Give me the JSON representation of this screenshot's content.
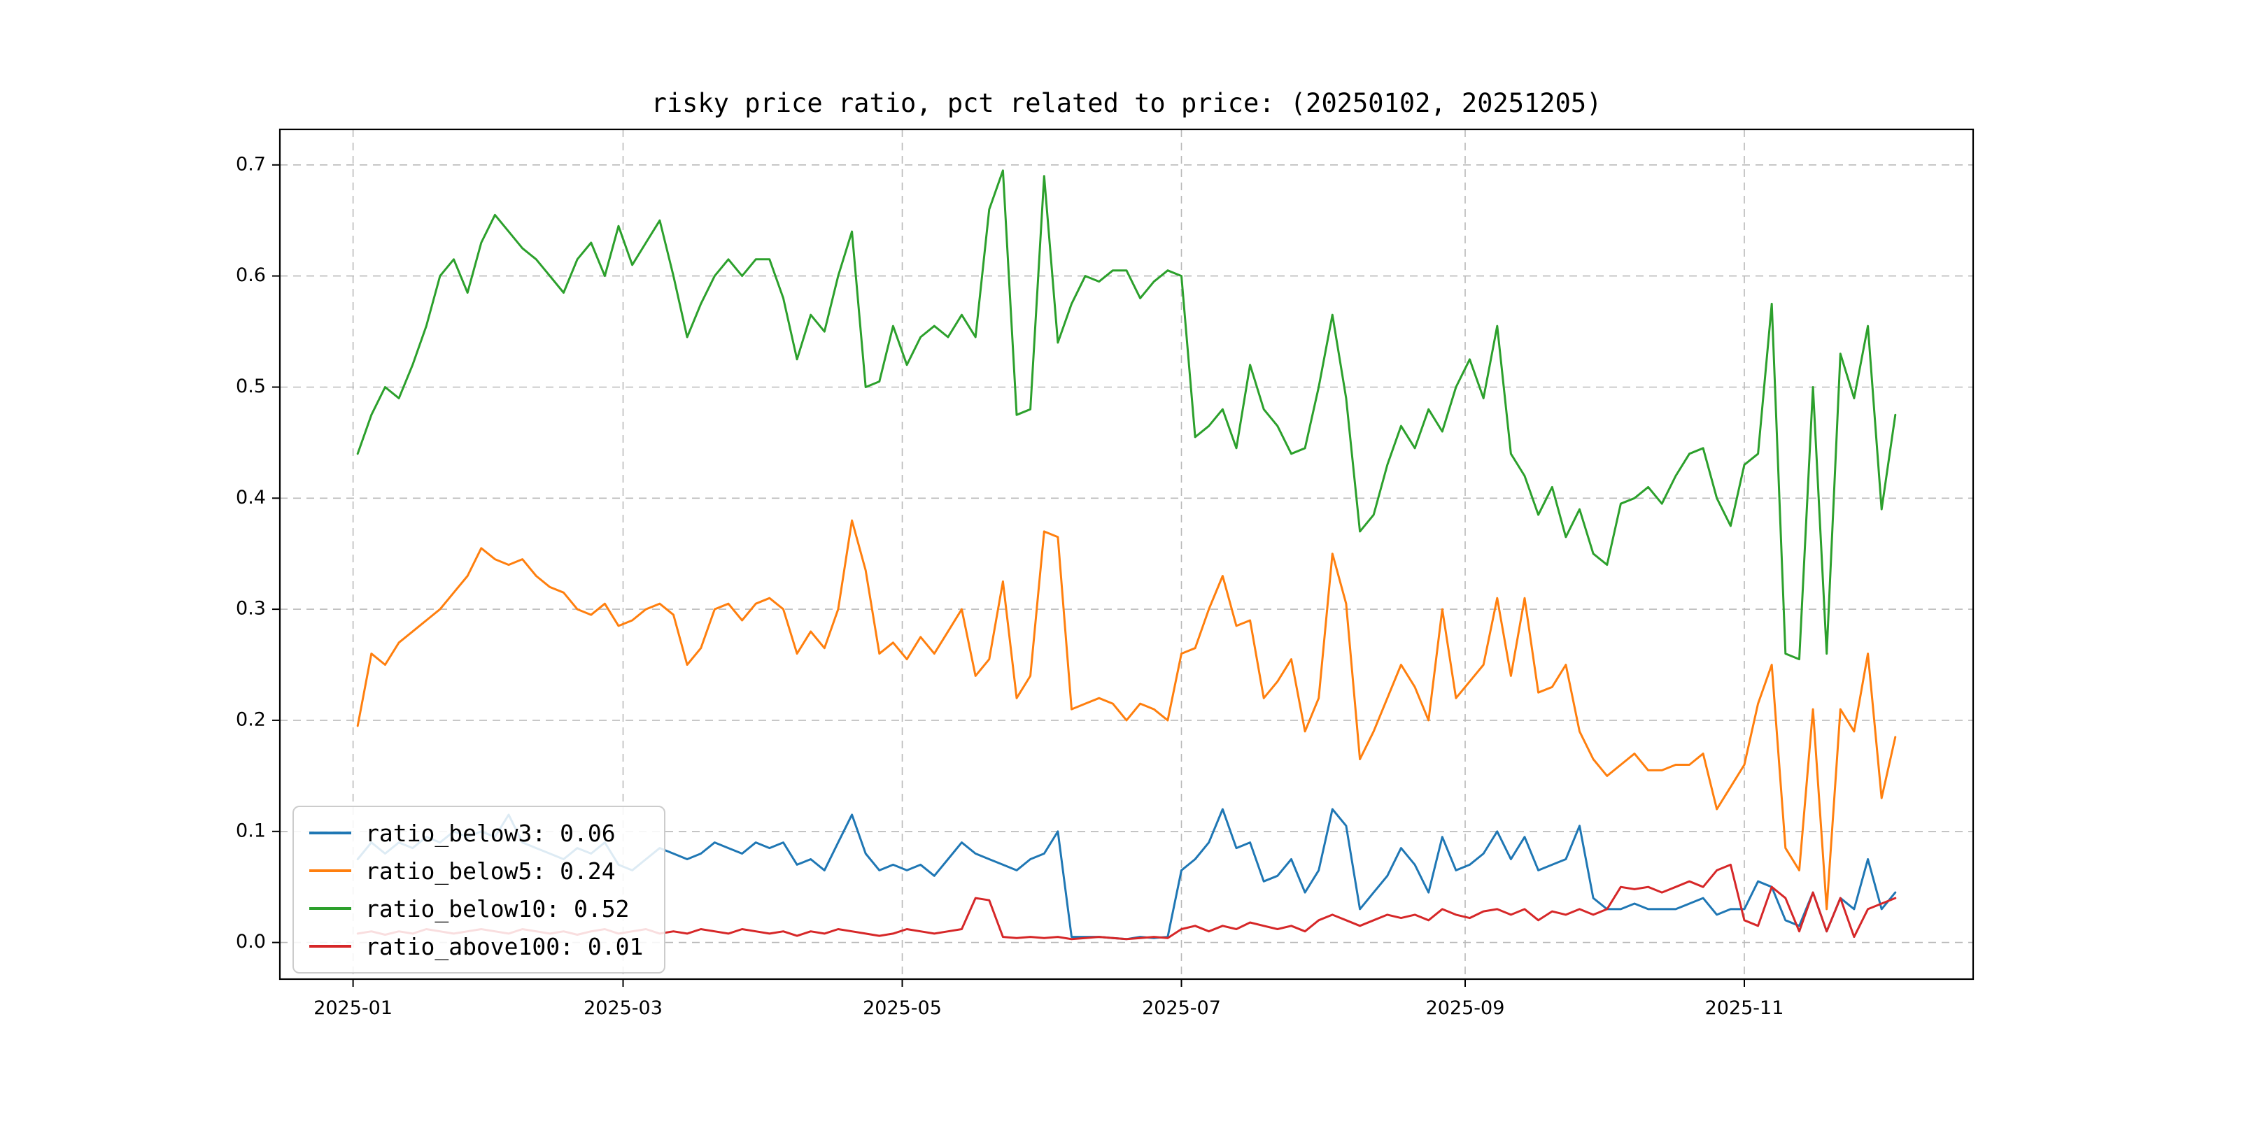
{
  "figure": {
    "title": "risky price ratio, pct related to price: (20250102, 20251205)",
    "background_color": "#ffffff"
  },
  "axes": {
    "x_tick_labels": [
      "2025-01",
      "2025-03",
      "2025-05",
      "2025-07",
      "2025-09",
      "2025-11"
    ],
    "x_tick_days": [
      1,
      60,
      121,
      182,
      244,
      305
    ],
    "y_tick_labels": [
      "0.0",
      "0.1",
      "0.2",
      "0.3",
      "0.4",
      "0.5",
      "0.6",
      "0.7"
    ],
    "y_tick_values": [
      0.0,
      0.1,
      0.2,
      0.3,
      0.4,
      0.5,
      0.6,
      0.7
    ],
    "grid_style": "dashed",
    "grid_color": "#b9b9b9"
  },
  "legend": {
    "position": "lower-left",
    "entries": [
      {
        "label": "ratio_below3: 0.06",
        "color": "#1f77b4"
      },
      {
        "label": "ratio_below5: 0.24",
        "color": "#ff7f0e"
      },
      {
        "label": "ratio_below10: 0.52",
        "color": "#2ca02c"
      },
      {
        "label": "ratio_above100: 0.01",
        "color": "#d62728"
      }
    ]
  },
  "chart_data": {
    "type": "line",
    "title": "risky price ratio, pct related to price: (20250102, 20251205)",
    "x_date_range": [
      "2025-01-02",
      "2025-12-05"
    ],
    "x_unit": "day_of_year_2025",
    "xlim": [
      -15,
      355
    ],
    "ylim": [
      -0.033,
      0.732
    ],
    "x": [
      2,
      5,
      8,
      11,
      14,
      17,
      20,
      23,
      26,
      29,
      32,
      35,
      38,
      41,
      44,
      47,
      50,
      53,
      56,
      59,
      62,
      65,
      68,
      71,
      74,
      77,
      80,
      83,
      86,
      89,
      92,
      95,
      98,
      101,
      104,
      107,
      110,
      113,
      116,
      119,
      122,
      125,
      128,
      131,
      134,
      137,
      140,
      143,
      146,
      149,
      152,
      155,
      158,
      161,
      164,
      167,
      170,
      173,
      176,
      179,
      182,
      185,
      188,
      191,
      194,
      197,
      200,
      203,
      206,
      209,
      212,
      215,
      218,
      221,
      224,
      227,
      230,
      233,
      236,
      239,
      242,
      245,
      248,
      251,
      254,
      257,
      260,
      263,
      266,
      269,
      272,
      275,
      278,
      281,
      284,
      287,
      290,
      293,
      296,
      299,
      302,
      305,
      308,
      311,
      314,
      317,
      320,
      323,
      326,
      329,
      332,
      335,
      338
    ],
    "series": [
      {
        "name": "ratio_below3",
        "color": "#1f77b4",
        "current_value": 0.06,
        "values": [
          0.075,
          0.09,
          0.08,
          0.09,
          0.085,
          0.095,
          0.09,
          0.1,
          0.095,
          0.1,
          0.095,
          0.115,
          0.09,
          0.085,
          0.08,
          0.075,
          0.085,
          0.08,
          0.09,
          0.07,
          0.065,
          0.075,
          0.085,
          0.08,
          0.075,
          0.08,
          0.09,
          0.085,
          0.08,
          0.09,
          0.085,
          0.09,
          0.07,
          0.075,
          0.065,
          0.09,
          0.115,
          0.08,
          0.065,
          0.07,
          0.065,
          0.07,
          0.06,
          0.075,
          0.09,
          0.08,
          0.075,
          0.07,
          0.065,
          0.075,
          0.08,
          0.1,
          0.005,
          0.005,
          0.005,
          0.004,
          0.003,
          0.005,
          0.004,
          0.005,
          0.065,
          0.075,
          0.09,
          0.12,
          0.085,
          0.09,
          0.055,
          0.06,
          0.075,
          0.045,
          0.065,
          0.12,
          0.105,
          0.03,
          0.045,
          0.06,
          0.085,
          0.07,
          0.045,
          0.095,
          0.065,
          0.07,
          0.08,
          0.1,
          0.075,
          0.095,
          0.065,
          0.07,
          0.075,
          0.105,
          0.04,
          0.03,
          0.03,
          0.035,
          0.03,
          0.03,
          0.03,
          0.035,
          0.04,
          0.025,
          0.03,
          0.03,
          0.055,
          0.05,
          0.02,
          0.015,
          0.045,
          0.01,
          0.04,
          0.03,
          0.075,
          0.03,
          0.045
        ]
      },
      {
        "name": "ratio_below5",
        "color": "#ff7f0e",
        "current_value": 0.24,
        "values": [
          0.195,
          0.26,
          0.25,
          0.27,
          0.28,
          0.29,
          0.3,
          0.315,
          0.33,
          0.355,
          0.345,
          0.34,
          0.345,
          0.33,
          0.32,
          0.315,
          0.3,
          0.295,
          0.305,
          0.285,
          0.29,
          0.3,
          0.305,
          0.295,
          0.25,
          0.265,
          0.3,
          0.305,
          0.29,
          0.305,
          0.31,
          0.3,
          0.26,
          0.28,
          0.265,
          0.3,
          0.38,
          0.335,
          0.26,
          0.27,
          0.255,
          0.275,
          0.26,
          0.28,
          0.3,
          0.24,
          0.255,
          0.325,
          0.22,
          0.24,
          0.37,
          0.365,
          0.21,
          0.215,
          0.22,
          0.215,
          0.2,
          0.215,
          0.21,
          0.2,
          0.26,
          0.265,
          0.3,
          0.33,
          0.285,
          0.29,
          0.22,
          0.235,
          0.255,
          0.19,
          0.22,
          0.35,
          0.305,
          0.165,
          0.19,
          0.22,
          0.25,
          0.23,
          0.2,
          0.3,
          0.22,
          0.235,
          0.25,
          0.31,
          0.24,
          0.31,
          0.225,
          0.23,
          0.25,
          0.19,
          0.165,
          0.15,
          0.16,
          0.17,
          0.155,
          0.155,
          0.16,
          0.16,
          0.17,
          0.12,
          0.14,
          0.16,
          0.215,
          0.25,
          0.085,
          0.065,
          0.21,
          0.03,
          0.21,
          0.19,
          0.26,
          0.13,
          0.185
        ]
      },
      {
        "name": "ratio_below10",
        "color": "#2ca02c",
        "current_value": 0.52,
        "values": [
          0.44,
          0.475,
          0.5,
          0.49,
          0.52,
          0.555,
          0.6,
          0.615,
          0.585,
          0.63,
          0.655,
          0.64,
          0.625,
          0.615,
          0.6,
          0.585,
          0.615,
          0.63,
          0.6,
          0.645,
          0.61,
          0.63,
          0.65,
          0.6,
          0.545,
          0.575,
          0.6,
          0.615,
          0.6,
          0.615,
          0.615,
          0.58,
          0.525,
          0.565,
          0.55,
          0.6,
          0.64,
          0.5,
          0.505,
          0.555,
          0.52,
          0.545,
          0.555,
          0.545,
          0.565,
          0.545,
          0.66,
          0.695,
          0.475,
          0.48,
          0.69,
          0.54,
          0.575,
          0.6,
          0.595,
          0.605,
          0.605,
          0.58,
          0.595,
          0.605,
          0.6,
          0.455,
          0.465,
          0.48,
          0.445,
          0.52,
          0.48,
          0.465,
          0.44,
          0.445,
          0.5,
          0.565,
          0.49,
          0.37,
          0.385,
          0.43,
          0.465,
          0.445,
          0.48,
          0.46,
          0.5,
          0.525,
          0.49,
          0.555,
          0.44,
          0.42,
          0.385,
          0.41,
          0.365,
          0.39,
          0.35,
          0.34,
          0.395,
          0.4,
          0.41,
          0.395,
          0.42,
          0.44,
          0.445,
          0.4,
          0.375,
          0.43,
          0.44,
          0.575,
          0.26,
          0.255,
          0.5,
          0.26,
          0.53,
          0.49,
          0.555,
          0.39,
          0.475
        ]
      },
      {
        "name": "ratio_above100",
        "color": "#d62728",
        "current_value": 0.01,
        "values": [
          0.008,
          0.01,
          0.007,
          0.01,
          0.008,
          0.012,
          0.01,
          0.008,
          0.01,
          0.012,
          0.01,
          0.008,
          0.012,
          0.01,
          0.008,
          0.01,
          0.007,
          0.01,
          0.012,
          0.008,
          0.01,
          0.012,
          0.008,
          0.01,
          0.008,
          0.012,
          0.01,
          0.008,
          0.012,
          0.01,
          0.008,
          0.01,
          0.006,
          0.01,
          0.008,
          0.012,
          0.01,
          0.008,
          0.006,
          0.008,
          0.012,
          0.01,
          0.008,
          0.01,
          0.012,
          0.04,
          0.038,
          0.005,
          0.004,
          0.005,
          0.004,
          0.005,
          0.003,
          0.004,
          0.005,
          0.004,
          0.003,
          0.004,
          0.005,
          0.004,
          0.012,
          0.015,
          0.01,
          0.015,
          0.012,
          0.018,
          0.015,
          0.012,
          0.015,
          0.01,
          0.02,
          0.025,
          0.02,
          0.015,
          0.02,
          0.025,
          0.022,
          0.025,
          0.02,
          0.03,
          0.025,
          0.022,
          0.028,
          0.03,
          0.025,
          0.03,
          0.02,
          0.028,
          0.025,
          0.03,
          0.025,
          0.03,
          0.05,
          0.048,
          0.05,
          0.045,
          0.05,
          0.055,
          0.05,
          0.065,
          0.07,
          0.02,
          0.015,
          0.05,
          0.04,
          0.01,
          0.045,
          0.01,
          0.04,
          0.005,
          0.03,
          0.035,
          0.04
        ]
      }
    ]
  }
}
